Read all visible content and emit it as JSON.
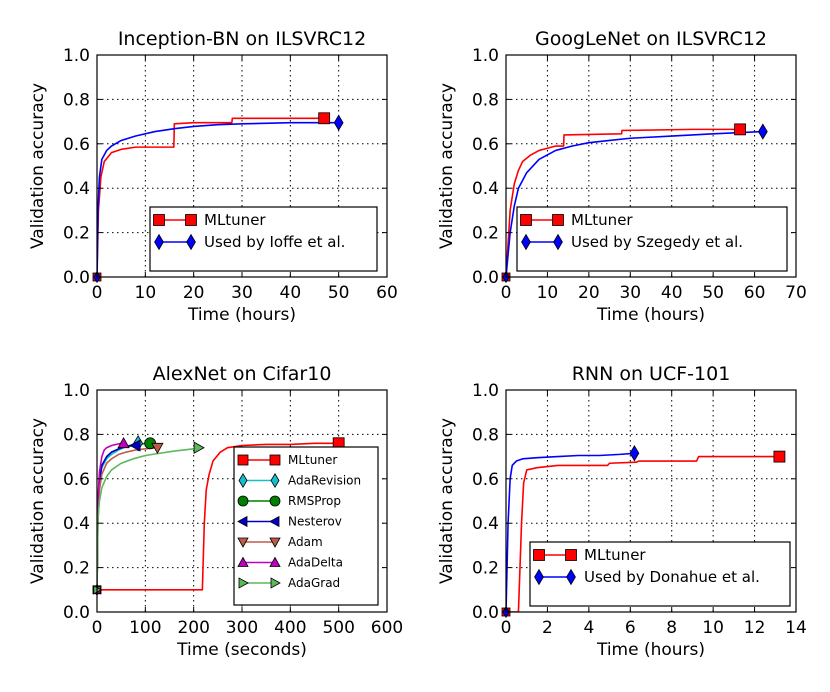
{
  "colors": {
    "MLtuner": "#ff0000",
    "baseline": "#0000ff",
    "AdaRevision": "#17becf",
    "RMSProp": "#008000",
    "Nesterov": "#0000cc",
    "Adam": "#bd5b4a",
    "AdaDelta": "#bf00bf",
    "AdaGrad": "#5cb85c"
  },
  "chart_data": [
    {
      "type": "line",
      "title": "Inception-BN on ILSVRC12",
      "xlabel": "Time (hours)",
      "ylabel": "Validation accuracy",
      "xlim": [
        0,
        60
      ],
      "ylim": [
        0,
        1
      ],
      "xticks": [
        "0",
        "10",
        "20",
        "30",
        "40",
        "50",
        "60"
      ],
      "yticks": [
        "0.0",
        "0.2",
        "0.4",
        "0.6",
        "0.8",
        "1.0"
      ],
      "grid": true,
      "legend": "lower-right",
      "series": [
        {
          "name": "MLtuner",
          "color": "#ff0000",
          "marker": "square",
          "x": [
            0,
            0.3,
            0.8,
            1.5,
            3,
            5,
            8,
            11,
            15.9,
            16,
            20,
            27.9,
            28,
            40,
            47
          ],
          "y": [
            0,
            0.3,
            0.45,
            0.52,
            0.56,
            0.575,
            0.585,
            0.585,
            0.585,
            0.69,
            0.695,
            0.695,
            0.715,
            0.715,
            0.715
          ]
        },
        {
          "name": "Used by Ioffe et al.",
          "color": "#0000ff",
          "marker": "diamond",
          "x": [
            0,
            0.2,
            0.5,
            1,
            2,
            3,
            5,
            8,
            12,
            16,
            20,
            25,
            30,
            40,
            50
          ],
          "y": [
            0,
            0.3,
            0.45,
            0.53,
            0.57,
            0.59,
            0.615,
            0.635,
            0.655,
            0.668,
            0.678,
            0.686,
            0.69,
            0.695,
            0.695
          ]
        }
      ]
    },
    {
      "type": "line",
      "title": "GoogLeNet on ILSVRC12",
      "xlabel": "Time (hours)",
      "ylabel": "Validation accuracy",
      "xlim": [
        0,
        70
      ],
      "ylim": [
        0,
        1
      ],
      "xticks": [
        "0",
        "10",
        "20",
        "30",
        "40",
        "50",
        "60",
        "70"
      ],
      "yticks": [
        "0.0",
        "0.2",
        "0.4",
        "0.6",
        "0.8",
        "1.0"
      ],
      "grid": true,
      "legend": "lower-right",
      "series": [
        {
          "name": "MLtuner",
          "color": "#ff0000",
          "marker": "square",
          "x": [
            0,
            0.5,
            1,
            2,
            3,
            4,
            6,
            8,
            10,
            12,
            13.9,
            14,
            27.9,
            28,
            45,
            56.5
          ],
          "y": [
            0,
            0.15,
            0.3,
            0.42,
            0.48,
            0.52,
            0.55,
            0.57,
            0.58,
            0.59,
            0.59,
            0.64,
            0.645,
            0.66,
            0.665,
            0.665
          ]
        },
        {
          "name": "Used by Szegedy et al.",
          "color": "#0000ff",
          "marker": "diamond",
          "x": [
            0,
            0.5,
            1,
            2,
            3,
            5,
            8,
            12,
            16,
            20,
            25,
            30,
            40,
            50,
            62
          ],
          "y": [
            0,
            0.1,
            0.2,
            0.32,
            0.4,
            0.47,
            0.53,
            0.57,
            0.59,
            0.605,
            0.615,
            0.625,
            0.635,
            0.645,
            0.655
          ]
        }
      ]
    },
    {
      "type": "line",
      "title": "AlexNet on Cifar10",
      "xlabel": "Time (seconds)",
      "ylabel": "Validation accuracy",
      "xlim": [
        0,
        600
      ],
      "ylim": [
        0,
        1
      ],
      "xticks": [
        "0",
        "100",
        "200",
        "300",
        "400",
        "500",
        "600"
      ],
      "yticks": [
        "0.0",
        "0.2",
        "0.4",
        "0.6",
        "0.8",
        "1.0"
      ],
      "grid": true,
      "legend": "lower-right",
      "series": [
        {
          "name": "MLtuner",
          "color": "#ff0000",
          "marker": "square",
          "x": [
            0,
            150,
            218,
            222,
            226,
            232,
            240,
            255,
            270,
            300,
            350,
            400,
            450,
            500
          ],
          "y": [
            0.1,
            0.1,
            0.1,
            0.4,
            0.55,
            0.62,
            0.68,
            0.72,
            0.74,
            0.75,
            0.755,
            0.755,
            0.76,
            0.76
          ]
        },
        {
          "name": "AdaRevision",
          "color": "#17becf",
          "marker": "diamond",
          "x": [
            0,
            2,
            5,
            10,
            20,
            30,
            45,
            60,
            75,
            85
          ],
          "y": [
            0.1,
            0.5,
            0.6,
            0.65,
            0.69,
            0.71,
            0.73,
            0.745,
            0.755,
            0.76
          ]
        },
        {
          "name": "RMSProp",
          "color": "#008000",
          "marker": "circle",
          "x": [
            0,
            2,
            5,
            10,
            20,
            30,
            45,
            60,
            80,
            100,
            110
          ],
          "y": [
            0.1,
            0.5,
            0.6,
            0.66,
            0.7,
            0.72,
            0.735,
            0.745,
            0.75,
            0.76,
            0.76
          ]
        },
        {
          "name": "Nesterov",
          "color": "#0000cc",
          "marker": "triangle-left",
          "x": [
            0,
            2,
            5,
            10,
            20,
            30,
            40,
            50,
            60,
            70,
            80
          ],
          "y": [
            0.1,
            0.45,
            0.58,
            0.66,
            0.7,
            0.72,
            0.73,
            0.74,
            0.745,
            0.75,
            0.75
          ]
        },
        {
          "name": "Adam",
          "color": "#bd5b4a",
          "marker": "triangle-down",
          "x": [
            0,
            2,
            5,
            10,
            20,
            30,
            45,
            60,
            80,
            100,
            125
          ],
          "y": [
            0.1,
            0.4,
            0.55,
            0.62,
            0.67,
            0.69,
            0.71,
            0.72,
            0.73,
            0.735,
            0.74
          ]
        },
        {
          "name": "AdaDelta",
          "color": "#bf00bf",
          "marker": "triangle-up",
          "x": [
            0,
            2,
            5,
            10,
            15,
            20,
            30,
            40,
            50,
            55
          ],
          "y": [
            0.1,
            0.5,
            0.63,
            0.7,
            0.73,
            0.74,
            0.75,
            0.755,
            0.76,
            0.76
          ]
        },
        {
          "name": "AdaGrad",
          "color": "#5cb85c",
          "marker": "triangle-right",
          "x": [
            0,
            2,
            5,
            10,
            20,
            30,
            50,
            75,
            100,
            130,
            160,
            200,
            210
          ],
          "y": [
            0.1,
            0.42,
            0.5,
            0.56,
            0.61,
            0.64,
            0.67,
            0.69,
            0.705,
            0.715,
            0.725,
            0.735,
            0.74
          ]
        }
      ]
    },
    {
      "type": "line",
      "title": "RNN on UCF-101",
      "xlabel": "Time (hours)",
      "ylabel": "Validation accuracy",
      "xlim": [
        0,
        14
      ],
      "ylim": [
        0,
        1
      ],
      "xticks": [
        "0",
        "2",
        "4",
        "6",
        "8",
        "10",
        "12",
        "14"
      ],
      "yticks": [
        "0.0",
        "0.2",
        "0.4",
        "0.6",
        "0.8",
        "1.0"
      ],
      "grid": true,
      "legend": "lower-right",
      "series": [
        {
          "name": "MLtuner",
          "color": "#ff0000",
          "marker": "square",
          "x": [
            0,
            0.6,
            0.75,
            0.85,
            1,
            1.5,
            2.5,
            4.9,
            5,
            6.3,
            6.4,
            9.2,
            9.3,
            11,
            13.2
          ],
          "y": [
            0,
            0,
            0.4,
            0.58,
            0.64,
            0.65,
            0.66,
            0.66,
            0.67,
            0.675,
            0.68,
            0.68,
            0.7,
            0.7,
            0.7
          ]
        },
        {
          "name": "Used by Donahue et al.",
          "color": "#0000ff",
          "marker": "diamond",
          "x": [
            0,
            0.1,
            0.2,
            0.3,
            0.5,
            0.8,
            1.5,
            2.5,
            3.5,
            4.5,
            5.5,
            6.2
          ],
          "y": [
            0,
            0.4,
            0.6,
            0.66,
            0.68,
            0.69,
            0.695,
            0.7,
            0.705,
            0.705,
            0.71,
            0.715
          ]
        }
      ]
    }
  ]
}
